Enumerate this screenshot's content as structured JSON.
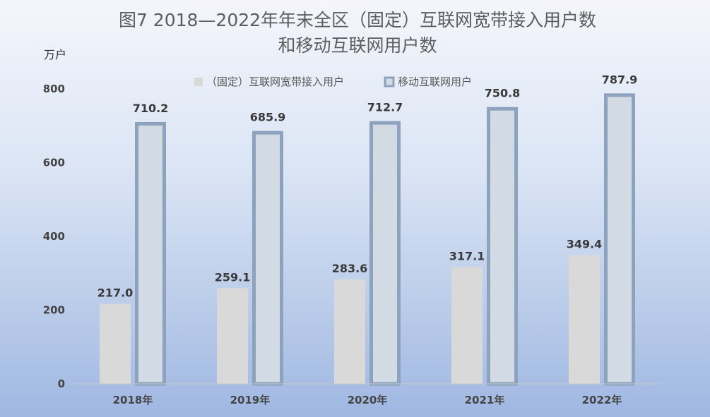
{
  "chart_data": {
    "type": "bar",
    "title": "图7  2018—2022年年末全区（固定）互联网宽带接入用户数",
    "subtitle": "和移动互联网用户数",
    "ylabel": "万户",
    "categories": [
      "2018年",
      "2019年",
      "2020年",
      "2021年",
      "2022年"
    ],
    "series": [
      {
        "name": "（固定）互联网宽带接入用户",
        "values": [
          217.0,
          259.1,
          283.6,
          317.1,
          349.4
        ],
        "labels": [
          "217.0",
          "259.1",
          "283.6",
          "317.1",
          "349.4"
        ],
        "color": "#d9d9d9"
      },
      {
        "name": "移动互联网用户",
        "values": [
          710.2,
          685.9,
          712.7,
          750.8,
          787.9
        ],
        "labels": [
          "710.2",
          "685.9",
          "712.7",
          "750.8",
          "787.9"
        ],
        "color": "#d2dae3",
        "border_color": "#8da3bd"
      }
    ],
    "ylim": [
      0,
      800
    ],
    "yticks": [
      0,
      200,
      400,
      600,
      800
    ],
    "ytick_labels": [
      "0",
      "200",
      "400",
      "600",
      "800"
    ],
    "grid": false,
    "legend_position": "top"
  }
}
